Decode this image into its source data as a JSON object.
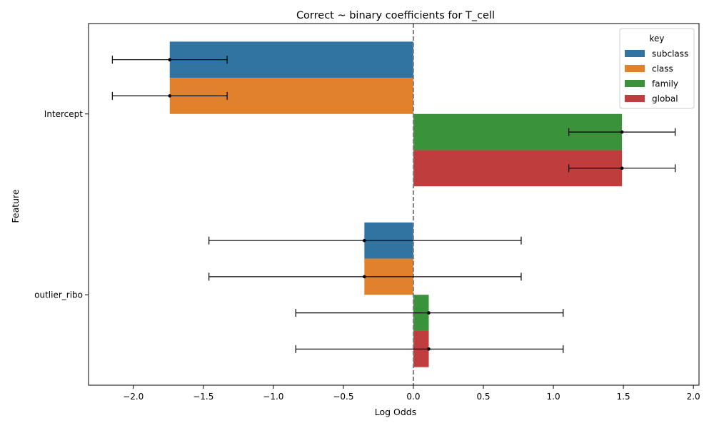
{
  "chart_data": {
    "type": "bar",
    "orientation": "horizontal",
    "title": "Correct ~ binary coefficients for T_cell",
    "xlabel": "Log Odds",
    "ylabel": "Feature",
    "xlim": [
      -2.32,
      2.04
    ],
    "xticks": [
      -2.0,
      -1.5,
      -1.0,
      -0.5,
      0.0,
      0.5,
      1.0,
      1.5,
      2.0
    ],
    "xtick_labels": [
      "−2.0",
      "−1.5",
      "−1.0",
      "−0.5",
      "0.0",
      "0.5",
      "1.0",
      "1.5",
      "2.0"
    ],
    "categories": [
      "Intercept",
      "outlier_ribo"
    ],
    "legend": {
      "title": "key",
      "position": "top-right"
    },
    "reference_line": {
      "x": 0,
      "style": "dashed",
      "color": "#808080"
    },
    "grid": false,
    "series": [
      {
        "name": "subclass",
        "color": "#3274a1",
        "values": [
          -1.74,
          -0.35
        ],
        "ci_low": [
          -2.15,
          -1.46
        ],
        "ci_high": [
          -1.33,
          0.77
        ]
      },
      {
        "name": "class",
        "color": "#e1812c",
        "values": [
          -1.74,
          -0.35
        ],
        "ci_low": [
          -2.15,
          -1.46
        ],
        "ci_high": [
          -1.33,
          0.77
        ]
      },
      {
        "name": "family",
        "color": "#3a923a",
        "values": [
          1.49,
          0.11
        ],
        "ci_low": [
          1.11,
          -0.84
        ],
        "ci_high": [
          1.87,
          1.07
        ]
      },
      {
        "name": "global",
        "color": "#c03d3e",
        "values": [
          1.49,
          0.11
        ],
        "ci_low": [
          1.11,
          -0.84
        ],
        "ci_high": [
          1.87,
          1.07
        ]
      }
    ]
  }
}
